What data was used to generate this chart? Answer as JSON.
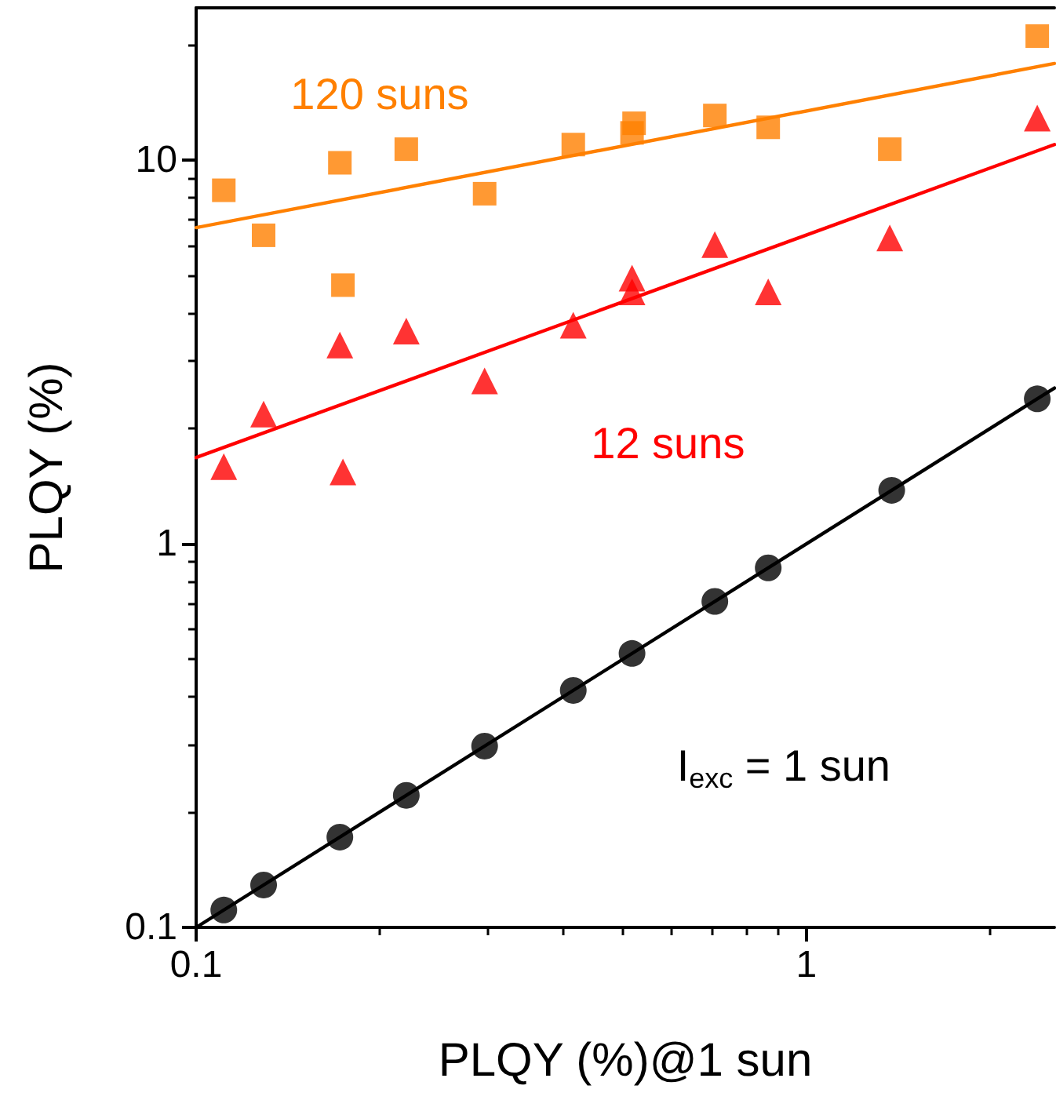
{
  "chart_data": {
    "type": "scatter",
    "xlabel": "PLQY (%)@1 sun",
    "ylabel": "PLQY (%)",
    "log": "xy",
    "grid": false,
    "legend": false,
    "xlim": [
      0.1,
      2.55
    ],
    "ylim": [
      0.1,
      25
    ],
    "xticks": [
      0.1,
      {
        "value": 0.2,
        "label": null
      },
      {
        "value": 0.3,
        "label": null
      },
      {
        "value": 0.4,
        "label": null
      },
      {
        "value": 0.5,
        "label": null
      },
      {
        "value": 0.6,
        "label": null
      },
      {
        "value": 0.7,
        "label": null
      },
      {
        "value": 0.8,
        "label": null
      },
      {
        "value": 0.9,
        "label": null
      },
      1,
      {
        "value": 2,
        "label": null
      }
    ],
    "yticks": [
      0.1,
      {
        "value": 0.2,
        "label": null
      },
      {
        "value": 0.3,
        "label": null
      },
      {
        "value": 0.4,
        "label": null
      },
      {
        "value": 0.5,
        "label": null
      },
      {
        "value": 0.6,
        "label": null
      },
      {
        "value": 0.7,
        "label": null
      },
      {
        "value": 0.8,
        "label": null
      },
      {
        "value": 0.9,
        "label": null
      },
      1,
      {
        "value": 2,
        "label": null
      },
      {
        "value": 3,
        "label": null
      },
      {
        "value": 4,
        "label": null
      },
      {
        "value": 5,
        "label": null
      },
      {
        "value": 6,
        "label": null
      },
      {
        "value": 7,
        "label": null
      },
      {
        "value": 8,
        "label": null
      },
      {
        "value": 9,
        "label": null
      },
      10,
      {
        "value": 20,
        "label": null
      }
    ],
    "series": [
      {
        "name": "120 suns",
        "type": "scatter",
        "marker": "square",
        "color": "#ff8000",
        "x": [
          0.111,
          0.129,
          0.172,
          0.174,
          0.221,
          0.297,
          0.415,
          0.518,
          0.522,
          0.708,
          0.866,
          1.37,
          2.39
        ],
        "values": [
          8.36,
          6.38,
          9.86,
          4.73,
          10.7,
          8.19,
          11.0,
          11.8,
          12.5,
          13.1,
          12.2,
          10.7,
          21.1
        ]
      },
      {
        "name": "12 suns",
        "type": "scatter",
        "marker": "triangle",
        "color": "#ff0000",
        "x": [
          0.111,
          0.129,
          0.172,
          0.174,
          0.221,
          0.297,
          0.415,
          0.518,
          0.518,
          0.708,
          0.866,
          1.37,
          2.39
        ],
        "values": [
          1.59,
          2.18,
          3.3,
          1.54,
          3.59,
          2.66,
          3.72,
          4.54,
          4.93,
          6.03,
          4.54,
          6.28,
          12.9
        ]
      },
      {
        "name": "I$_{exc}$ = 1 sun",
        "type": "scatter",
        "marker": "circle",
        "color": "#000000",
        "x": [
          0.111,
          0.129,
          0.172,
          0.221,
          0.297,
          0.415,
          0.518,
          0.708,
          0.866,
          1.38,
          2.39
        ],
        "values": [
          0.111,
          0.129,
          0.172,
          0.221,
          0.297,
          0.415,
          0.518,
          0.708,
          0.866,
          1.38,
          2.39
        ]
      },
      {
        "type": "line",
        "marker": "none",
        "line_style": "solid",
        "color": "#ff8000",
        "x": [
          0.1,
          2.55
        ],
        "values": [
          6.68,
          17.9
        ]
      },
      {
        "type": "line",
        "marker": "none",
        "line_style": "solid",
        "color": "#ff0000",
        "x": [
          0.1,
          2.55
        ],
        "values": [
          1.68,
          11.0
        ]
      },
      {
        "type": "line",
        "marker": "none",
        "line_style": "solid",
        "color": "#000000",
        "x": [
          0.1,
          2.55
        ],
        "values": [
          0.1,
          2.55
        ]
      }
    ]
  }
}
